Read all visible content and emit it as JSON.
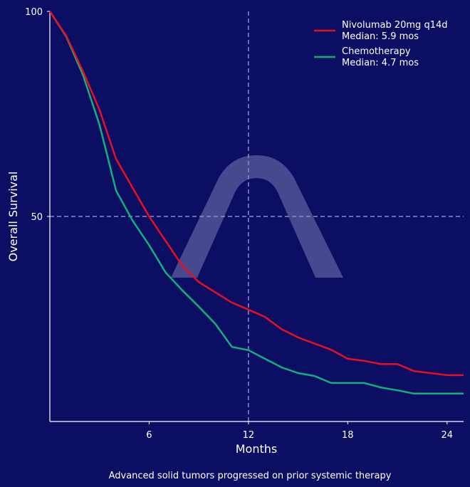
{
  "colors": {
    "background": "#0c0e63",
    "axis": "#ffffff",
    "reference_line": "#8a8cc8",
    "watermark": "#5a5a9a",
    "nivolumab": "#e8101e",
    "chemotherapy": "#0fb37a"
  },
  "chart_data": {
    "type": "line",
    "title": "",
    "caption": "Advanced solid tumors progressed on prior systemic therapy",
    "xlabel": "Months",
    "ylabel": "Overall Survival",
    "xlim": [
      0,
      25
    ],
    "ylim": [
      0,
      100
    ],
    "xticks": [
      6,
      12,
      18,
      24
    ],
    "xtick_labels": [
      "6",
      "12",
      "18",
      "24"
    ],
    "yticks": [
      50,
      100
    ],
    "ytick_labels": [
      "50",
      "100"
    ],
    "grid": false,
    "reference_lines": {
      "horizontal_y": 50,
      "vertical_x": 12,
      "style": "dashed"
    },
    "legend_position": "upper right",
    "x": [
      0,
      1,
      2,
      3,
      4,
      5,
      6,
      7,
      8,
      9,
      10,
      11,
      12,
      13,
      14,
      15,
      16,
      17,
      18,
      19,
      20,
      21,
      22,
      23,
      24,
      25
    ],
    "series": [
      {
        "name": "Nivolumab 20mg q14d",
        "legend_line1": "Nivolumab 20mg q14d",
        "legend_line2": "Median: 5.9 mos",
        "median": 5.9,
        "color": "#e8101e",
        "values": [
          100,
          94,
          85.4,
          76,
          64,
          57,
          50,
          44,
          38,
          34,
          31.5,
          29,
          27.3,
          25.5,
          22.5,
          20.5,
          19,
          17.5,
          15.3,
          14.8,
          14,
          14,
          12.3,
          11.8,
          11.3,
          11.3
        ]
      },
      {
        "name": "Chemotherapy",
        "legend_line1": "Chemotherapy",
        "legend_line2": "Median: 4.7 mos",
        "median": 4.7,
        "color": "#0fb37a",
        "values": [
          100,
          93.8,
          84.5,
          72.4,
          56.3,
          49,
          43,
          36.3,
          32,
          28,
          23.8,
          18.2,
          17.4,
          15.3,
          13.2,
          11.8,
          11.1,
          9.4,
          9.4,
          9.4,
          8.3,
          7.6,
          6.8,
          6.8,
          6.8,
          6.8
        ]
      }
    ]
  },
  "watermark": {
    "icon": "arch-logo-icon"
  }
}
